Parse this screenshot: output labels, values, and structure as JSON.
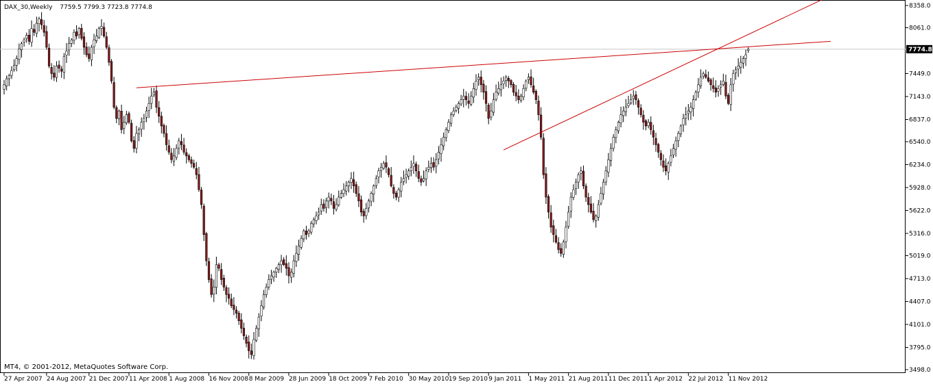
{
  "header": {
    "symbol": "DAX_30,Weekly",
    "ohlc": "7759.5 7799.3 7723.8 7774.8"
  },
  "footer": {
    "copyright": "MT4, © 2001-2012, MetaQuotes Software Corp."
  },
  "colors": {
    "up": "#000000",
    "down": "#8b1a1a",
    "trendline": "#cc0000",
    "grid": "#c8c8c8",
    "price_tag": "#000000"
  },
  "chart_data": {
    "type": "candlestick",
    "ylim": [
      3498,
      8358
    ],
    "yticks": [
      "8358.0",
      "8061.0",
      "7774.8",
      "7449.0",
      "7143.0",
      "6837.0",
      "6540.0",
      "6234.0",
      "5928.0",
      "5622.0",
      "5316.0",
      "5019.0",
      "4713.0",
      "4407.0",
      "4101.0",
      "3795.0",
      "3498.0"
    ],
    "ytick_values": [
      8358,
      8061,
      7774.8,
      7449,
      7143,
      6837,
      6540,
      6234,
      5928,
      5622,
      5316,
      5019,
      4713,
      4407,
      4101,
      3795,
      3498
    ],
    "xticks": [
      "27 Apr 2007",
      "24 Aug 2007",
      "21 Dec 2007",
      "11 Apr 2008",
      "1 Aug 2008",
      "16 Nov 2008",
      "8 Mar 2009",
      "28 Jun 2009",
      "18 Oct 2009",
      "7 Feb 2010",
      "30 May 2010",
      "19 Sep 2010",
      "9 Jan 2011",
      "1 May 2011",
      "21 Aug 2011",
      "11 Dec 2011",
      "1 Apr 2012",
      "22 Jul 2012",
      "11 Nov 2012"
    ],
    "xtick_index": [
      0,
      17,
      34,
      50,
      66,
      82,
      98,
      114,
      130,
      146,
      162,
      178,
      194,
      210,
      226,
      242,
      258,
      274,
      290
    ],
    "current_price": 7774.8,
    "last_candle": {
      "open": 7759.5,
      "high": 7799.3,
      "low": 7723.8,
      "close": 7774.8
    },
    "trendlines": [
      {
        "from": {
          "index": 53,
          "price": 7260
        },
        "to": {
          "index": 331,
          "price": 7880
        }
      },
      {
        "from": {
          "index": 200,
          "price": 6430
        },
        "to": {
          "index": 331,
          "price": 8490
        }
      }
    ],
    "closes": [
      7300,
      7380,
      7420,
      7490,
      7560,
      7650,
      7780,
      7850,
      7900,
      7960,
      7880,
      8050,
      8000,
      8120,
      8180,
      8100,
      8000,
      7800,
      7550,
      7450,
      7400,
      7550,
      7520,
      7480,
      7680,
      7750,
      7850,
      7900,
      8000,
      7950,
      8050,
      7920,
      7800,
      7700,
      7650,
      7800,
      7900,
      7950,
      8050,
      8080,
      7950,
      7800,
      7600,
      7350,
      7000,
      6850,
      6950,
      6700,
      6800,
      6900,
      6800,
      6550,
      6450,
      6650,
      6700,
      6800,
      6850,
      6950,
      7050,
      7150,
      7200,
      7000,
      6880,
      6750,
      6650,
      6500,
      6400,
      6300,
      6350,
      6450,
      6550,
      6500,
      6400,
      6350,
      6300,
      6250,
      6200,
      6100,
      5900,
      5700,
      5300,
      4950,
      4700,
      4500,
      4600,
      4900,
      4850,
      4700,
      4600,
      4500,
      4450,
      4350,
      4300,
      4250,
      4150,
      4050,
      3950,
      3850,
      3750,
      3700,
      3900,
      4050,
      4200,
      4350,
      4500,
      4600,
      4700,
      4750,
      4800,
      4850,
      4900,
      4950,
      4900,
      4850,
      4750,
      4800,
      4950,
      5050,
      5150,
      5250,
      5350,
      5300,
      5350,
      5450,
      5500,
      5550,
      5600,
      5700,
      5650,
      5750,
      5800,
      5750,
      5650,
      5700,
      5800,
      5850,
      5900,
      5950,
      6000,
      6050,
      5950,
      5850,
      5750,
      5600,
      5550,
      5650,
      5750,
      5850,
      5950,
      6050,
      6150,
      6200,
      6250,
      6200,
      6100,
      5950,
      5850,
      5800,
      5900,
      6000,
      6050,
      6100,
      6150,
      6200,
      6250,
      6150,
      6050,
      6000,
      6050,
      6150,
      6200,
      6250,
      6200,
      6300,
      6400,
      6500,
      6600,
      6700,
      6800,
      6900,
      6950,
      7000,
      7050,
      7100,
      7150,
      7100,
      7050,
      7150,
      7250,
      7350,
      7400,
      7300,
      7200,
      7050,
      6850,
      6950,
      7100,
      7200,
      7250,
      7300,
      7350,
      7400,
      7350,
      7300,
      7200,
      7150,
      7100,
      7150,
      7250,
      7350,
      7400,
      7300,
      7200,
      7100,
      6900,
      6600,
      6100,
      5800,
      5600,
      5400,
      5300,
      5200,
      5100,
      5050,
      5200,
      5400,
      5600,
      5800,
      5900,
      6000,
      6100,
      6150,
      5950,
      5800,
      5700,
      5600,
      5500,
      5550,
      5700,
      5850,
      6000,
      6150,
      6300,
      6450,
      6600,
      6700,
      6800,
      6900,
      6950,
      7000,
      7050,
      7100,
      7150,
      7100,
      7000,
      6900,
      6800,
      6750,
      6800,
      6700,
      6600,
      6500,
      6400,
      6300,
      6200,
      6150,
      6250,
      6350,
      6450,
      6550,
      6650,
      6750,
      6850,
      6900,
      6950,
      7000,
      7100,
      7200,
      7300,
      7400,
      7450,
      7400,
      7350,
      7300,
      7250,
      7200,
      7250,
      7300,
      7350,
      7150,
      7050,
      7300,
      7450,
      7500,
      7550,
      7600,
      7650,
      7700,
      7774.8
    ]
  }
}
